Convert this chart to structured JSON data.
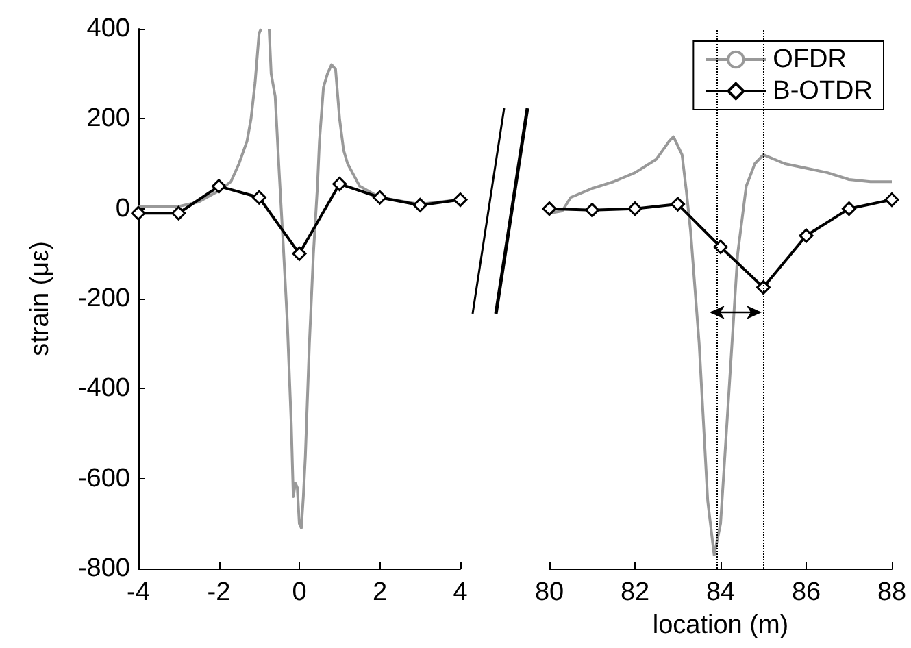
{
  "chart_data": [
    {
      "type": "line",
      "ylabel": "strain (με)",
      "xlim": [
        -4,
        4
      ],
      "xticks": [
        -4,
        -2,
        0,
        2,
        4
      ],
      "ylim": [
        -800,
        400
      ],
      "yticks": [
        -800,
        -600,
        -400,
        -200,
        0,
        200,
        400
      ],
      "series": [
        {
          "color": "#999999",
          "x": [
            -4,
            -3,
            -2.5,
            -2,
            -1.7,
            -1.5,
            -1.3,
            -1.2,
            -1.1,
            -1.0,
            -0.95,
            -0.85,
            -0.75,
            -0.7,
            -0.6,
            -0.5,
            -0.4,
            -0.3,
            -0.2,
            -0.15,
            -0.1,
            -0.05,
            0,
            0.05,
            0.1,
            0.15,
            0.25,
            0.35,
            0.45,
            0.5,
            0.6,
            0.7,
            0.8,
            0.9,
            1.0,
            1.1,
            1.2,
            1.5,
            2,
            3,
            4
          ],
          "values": [
            5,
            5,
            15,
            40,
            60,
            100,
            150,
            200,
            280,
            390,
            400,
            null,
            400,
            300,
            250,
            80,
            -80,
            -250,
            -480,
            -640,
            -610,
            -620,
            -700,
            -710,
            -640,
            -550,
            -300,
            -100,
            50,
            150,
            270,
            300,
            320,
            310,
            200,
            130,
            100,
            50,
            25,
            10,
            20
          ]
        },
        {
          "color": "#000000",
          "marker": "diamond",
          "x": [
            -4,
            -3,
            -2,
            -1,
            0,
            1,
            2,
            3,
            4
          ],
          "values": [
            -10,
            -10,
            50,
            25,
            -100,
            55,
            25,
            8,
            20
          ]
        }
      ]
    },
    {
      "type": "line",
      "xlabel": "location (m)",
      "xlim": [
        80,
        88
      ],
      "xticks": [
        80,
        82,
        84,
        86,
        88
      ],
      "ylim": [
        -800,
        400
      ],
      "tick_labels": "x",
      "legend": "top right",
      "series": [
        {
          "name": "OFDR",
          "color": "#999999",
          "x": [
            80,
            80.3,
            80.5,
            81,
            81.5,
            82,
            82.5,
            82.8,
            82.9,
            83.1,
            83.2,
            83.3,
            83.5,
            83.7,
            83.85,
            84,
            84.2,
            84.4,
            84.6,
            84.8,
            85,
            85.5,
            86,
            86.5,
            87,
            87.5,
            88
          ],
          "values": [
            -10,
            -5,
            25,
            45,
            60,
            80,
            110,
            150,
            160,
            120,
            40,
            -50,
            -300,
            -650,
            -770,
            -700,
            -400,
            -100,
            50,
            100,
            120,
            100,
            90,
            80,
            65,
            60,
            60
          ]
        },
        {
          "name": "B-OTDR",
          "color": "#000000",
          "marker": "diamond",
          "x": [
            80,
            81,
            82,
            83,
            84,
            85,
            86,
            87,
            88
          ],
          "values": [
            0,
            -3,
            0,
            10,
            -85,
            -175,
            -60,
            0,
            20
          ]
        }
      ],
      "ref_lines": [
        {
          "axis": "x",
          "value": 83.9,
          "line_style": "dotted",
          "color": "#000000"
        },
        {
          "axis": "x",
          "value": 85,
          "line_style": "dotted",
          "color": "#000000"
        }
      ]
    }
  ]
}
